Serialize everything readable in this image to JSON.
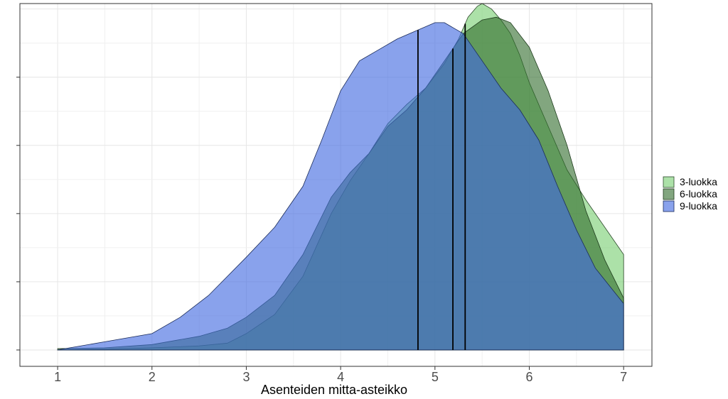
{
  "chart_data": {
    "type": "area",
    "subtype": "density",
    "title": "",
    "xlabel": "Asenteiden mitta-asteikko",
    "ylabel": "",
    "xlim": [
      0.6,
      7.3
    ],
    "ylim": [
      -0.06,
      1.27
    ],
    "x_ticks": [
      "1",
      "2",
      "3",
      "4",
      "5",
      "6",
      "7"
    ],
    "grid": true,
    "legend_position": "right",
    "series": [
      {
        "name": "3-luokka",
        "color": "#7fd17a",
        "border": "#2d4a2b",
        "opacity": 0.65,
        "median": 5.32,
        "x": [
          1,
          1.5,
          2,
          2.5,
          2.8,
          3,
          3.3,
          3.6,
          3.9,
          4.1,
          4.3,
          4.5,
          4.7,
          4.9,
          5.1,
          5.25,
          5.35,
          5.45,
          5.5,
          5.6,
          5.7,
          5.8,
          5.9,
          6.0,
          6.2,
          6.4,
          6.6,
          6.8,
          7.0
        ],
        "y": [
          0.0,
          0.003,
          0.008,
          0.015,
          0.025,
          0.06,
          0.13,
          0.27,
          0.5,
          0.62,
          0.72,
          0.83,
          0.9,
          0.96,
          1.05,
          1.14,
          1.22,
          1.26,
          1.27,
          1.25,
          1.21,
          1.16,
          1.08,
          0.98,
          0.82,
          0.66,
          0.55,
          0.45,
          0.35
        ]
      },
      {
        "name": "6-luokka",
        "color": "#2f6b2a",
        "border": "#1d3a1b",
        "opacity": 0.6,
        "median": 5.19,
        "x": [
          1,
          1.5,
          2,
          2.5,
          2.8,
          3,
          3.3,
          3.6,
          3.9,
          4.1,
          4.3,
          4.5,
          4.7,
          4.9,
          5.1,
          5.3,
          5.5,
          5.65,
          5.8,
          6.0,
          6.2,
          6.4,
          6.6,
          6.8,
          7.0
        ],
        "y": [
          0.005,
          0.008,
          0.02,
          0.05,
          0.08,
          0.12,
          0.2,
          0.35,
          0.56,
          0.65,
          0.72,
          0.82,
          0.88,
          0.96,
          1.06,
          1.16,
          1.21,
          1.22,
          1.2,
          1.11,
          0.95,
          0.75,
          0.51,
          0.33,
          0.19
        ]
      },
      {
        "name": "9-luokka",
        "color": "#4169e1",
        "border": "#1a2b5a",
        "opacity": 0.62,
        "median": 4.82,
        "x": [
          1,
          1.5,
          2,
          2.3,
          2.6,
          3,
          3.3,
          3.6,
          3.8,
          4.0,
          4.2,
          4.4,
          4.6,
          4.8,
          5.0,
          5.1,
          5.3,
          5.5,
          5.7,
          5.9,
          6.1,
          6.3,
          6.5,
          6.7,
          7.0
        ],
        "y": [
          0.0,
          0.03,
          0.06,
          0.12,
          0.2,
          0.34,
          0.45,
          0.6,
          0.77,
          0.95,
          1.06,
          1.1,
          1.14,
          1.17,
          1.2,
          1.2,
          1.16,
          1.06,
          0.96,
          0.88,
          0.77,
          0.6,
          0.44,
          0.3,
          0.17
        ]
      }
    ]
  }
}
